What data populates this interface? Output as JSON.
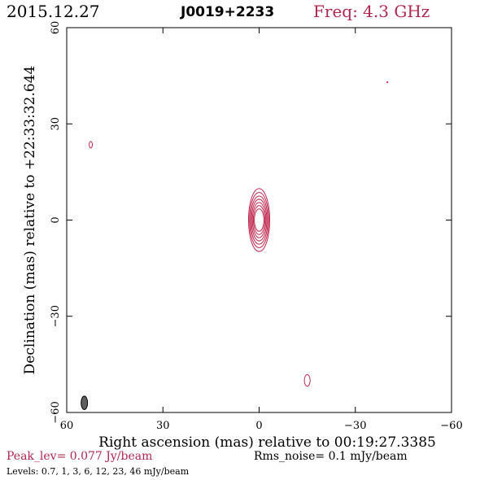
{
  "header": {
    "date": "2015.12.27",
    "source": "J0019+2233",
    "freq": "Freq: 4.3 GHz",
    "freq_color": "#b0284e"
  },
  "chart_data": {
    "type": "contour",
    "xlabel": "Right ascension (mas) relative to 00:19:27.3385",
    "ylabel": "Declination (mas) relative to +22:33:32.644",
    "xlim": [
      60,
      -60
    ],
    "ylim": [
      -60,
      60
    ],
    "xticks": [
      60,
      30,
      0,
      -30,
      -60
    ],
    "yticks": [
      60,
      30,
      0,
      -30,
      -60
    ],
    "xtick_labels": [
      "60",
      "30",
      "0",
      "−30",
      "−60"
    ],
    "ytick_labels": [
      "60",
      "30",
      "0",
      "−30",
      "−60"
    ],
    "contour_color": "#c0284f",
    "components": [
      {
        "name": "core",
        "x": 0,
        "y": 0,
        "rings": [
          [
            1.5,
            3.5
          ],
          [
            1.8,
            4.5
          ],
          [
            2.1,
            5.5
          ],
          [
            2.4,
            6.5
          ],
          [
            2.7,
            7.5
          ],
          [
            3.0,
            8.6
          ],
          [
            3.3,
            9.8
          ]
        ]
      },
      {
        "name": "blob-ne",
        "x": 52.5,
        "y": 23.5,
        "rings": [
          [
            0.5,
            1.0
          ]
        ]
      },
      {
        "name": "blob-sw",
        "x": -15,
        "y": -50,
        "rings": [
          [
            0.9,
            1.8
          ]
        ]
      },
      {
        "name": "dot",
        "x": -40,
        "y": 43,
        "rings": [
          [
            0.15,
            0.15
          ]
        ]
      }
    ],
    "beam": {
      "x": 54.5,
      "y": -57,
      "bmaj": 4.2,
      "bmin": 2.0,
      "fill": "#606060"
    },
    "peak_lev": "Peak_lev=  0.077 Jy/beam",
    "rms_noise": "Rms_noise=   0.1 mJy/beam",
    "levels": "Levels: 0.7,    1,    3,    6,   12,   23,   46 mJy/beam"
  }
}
